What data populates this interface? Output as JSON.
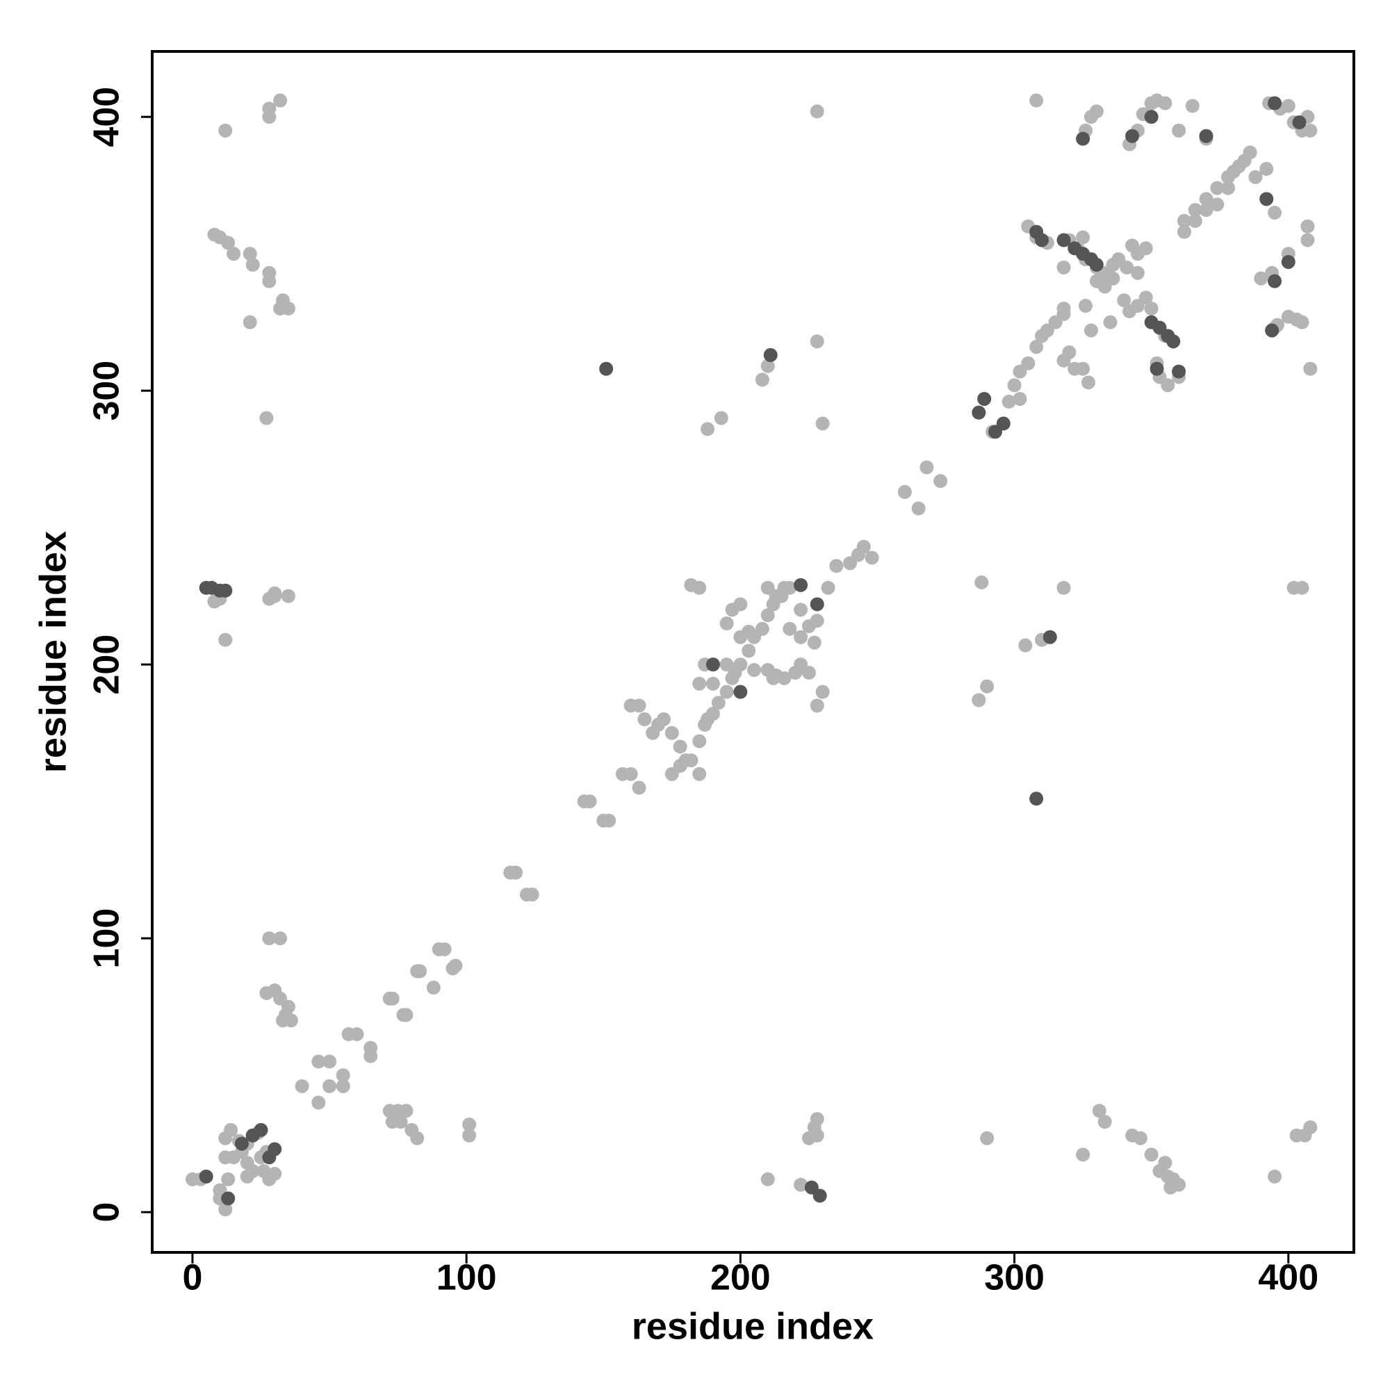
{
  "chart_data": {
    "type": "scatter",
    "x_label": "residue index",
    "y_label": "residue index",
    "xlim": [
      -14.7,
      423.9
    ],
    "ylim": [
      -14.7,
      423.9
    ],
    "xticks": [
      0,
      100,
      200,
      300,
      400
    ],
    "yticks": [
      0,
      100,
      200,
      300,
      400
    ],
    "series": [
      {
        "color": "#b4b4b4",
        "x": [
          0,
          3,
          10,
          12,
          10,
          13,
          12,
          15,
          18,
          20,
          22,
          25,
          26,
          28,
          30,
          12,
          14,
          17,
          20,
          22,
          20,
          27,
          24,
          40,
          46,
          46,
          50,
          55,
          50,
          55,
          57,
          60,
          65,
          65,
          72,
          73,
          77,
          78,
          82,
          88,
          83,
          90,
          96,
          95,
          92,
          116,
          118,
          124,
          122,
          143,
          145,
          150,
          152,
          157,
          160,
          163,
          160,
          163,
          165,
          168,
          170,
          172,
          175,
          178,
          180,
          175,
          178,
          182,
          185,
          185,
          187,
          190,
          192,
          195,
          197,
          200,
          203,
          205,
          208,
          210,
          212,
          215,
          218,
          190,
          195,
          198,
          185,
          188,
          187,
          195,
          197,
          200,
          200,
          203,
          205,
          210,
          213,
          216,
          220,
          222,
          218,
          222,
          225,
          227,
          213,
          216,
          210,
          222,
          228,
          230,
          228,
          182,
          185,
          225,
          212,
          232,
          235,
          240,
          243,
          245,
          248,
          260,
          265,
          268,
          273,
          188,
          193,
          208,
          210,
          228,
          230,
          228,
          12,
          8,
          10,
          28,
          30,
          35,
          30,
          12,
          28,
          28,
          32,
          27,
          21,
          8,
          10,
          13,
          15,
          21,
          22,
          28,
          28,
          32,
          35,
          33,
          28,
          32,
          27,
          30,
          32,
          35,
          34,
          33,
          36,
          72,
          75,
          78,
          76,
          80,
          82,
          73,
          101,
          101,
          210,
          222,
          228,
          227,
          225,
          228,
          287,
          290,
          288,
          304,
          310,
          318,
          290,
          325,
          331,
          333,
          343,
          346,
          350,
          355,
          353,
          356,
          358,
          360,
          357,
          395,
          403,
          408,
          406,
          402,
          405,
          287,
          292,
          298,
          302,
          300,
          302,
          305,
          308,
          310,
          312,
          315,
          318,
          320,
          318,
          322,
          325,
          327,
          328,
          326,
          330,
          333,
          336,
          340,
          342,
          345,
          348,
          350,
          341,
          345,
          348,
          343,
          338,
          345,
          305,
          308,
          312,
          320,
          323,
          326,
          330,
          333,
          353,
          356,
          360,
          352,
          355,
          358,
          362,
          366,
          370,
          374,
          378,
          382,
          386,
          362,
          366,
          370,
          374,
          378,
          380,
          384,
          388,
          392,
          395,
          392,
          390,
          394,
          396,
          400,
          403,
          405,
          395,
          400,
          407,
          407,
          408,
          393,
          397,
          400,
          402,
          405,
          408,
          407,
          326,
          328,
          330,
          335,
          342,
          345,
          347,
          350,
          352,
          355,
          360,
          365,
          370,
          308,
          318,
          318,
          328,
          336,
          325
        ],
        "y": [
          12,
          12,
          5,
          1,
          8,
          12,
          20,
          20,
          22,
          25,
          28,
          20,
          15,
          12,
          14,
          27,
          30,
          26,
          18,
          15,
          13,
          22,
          29,
          46,
          40,
          55,
          55,
          50,
          46,
          46,
          65,
          65,
          57,
          60,
          78,
          78,
          72,
          72,
          88,
          82,
          88,
          96,
          90,
          89,
          96,
          124,
          124,
          116,
          116,
          150,
          150,
          143,
          143,
          160,
          160,
          155,
          185,
          185,
          180,
          175,
          178,
          180,
          175,
          170,
          165,
          160,
          163,
          165,
          160,
          172,
          178,
          182,
          186,
          190,
          195,
          200,
          205,
          210,
          213,
          218,
          222,
          225,
          228,
          193,
          200,
          197,
          193,
          180,
          200,
          215,
          220,
          222,
          210,
          212,
          198,
          198,
          196,
          195,
          197,
          200,
          213,
          210,
          214,
          208,
          225,
          228,
          228,
          220,
          216,
          190,
          185,
          229,
          228,
          197,
          195,
          228,
          236,
          237,
          240,
          243,
          239,
          263,
          257,
          272,
          267,
          286,
          290,
          304,
          309,
          318,
          288,
          402,
          209,
          223,
          224,
          224,
          225,
          225,
          226,
          395,
          400,
          403,
          406,
          290,
          325,
          357,
          356,
          354,
          350,
          350,
          346,
          343,
          340,
          330,
          330,
          333,
          100,
          100,
          80,
          81,
          78,
          75,
          72,
          70,
          70,
          37,
          37,
          37,
          33,
          30,
          27,
          33,
          32,
          28,
          12,
          10,
          34,
          31,
          27,
          28,
          187,
          192,
          230,
          207,
          209,
          228,
          27,
          21,
          37,
          33,
          28,
          27,
          21,
          18,
          15,
          13,
          12,
          10,
          9,
          13,
          28,
          31,
          28,
          228,
          228,
          292,
          285,
          296,
          297,
          302,
          307,
          310,
          316,
          320,
          322,
          325,
          330,
          314,
          311,
          308,
          308,
          303,
          322,
          331,
          340,
          338,
          341,
          333,
          329,
          331,
          334,
          330,
          345,
          350,
          352,
          353,
          348,
          343,
          360,
          356,
          354,
          355,
          352,
          348,
          345,
          343,
          305,
          302,
          305,
          310,
          320,
          318,
          362,
          366,
          370,
          374,
          378,
          382,
          387,
          358,
          362,
          366,
          368,
          374,
          380,
          384,
          378,
          381,
          365,
          370,
          341,
          343,
          324,
          327,
          326,
          325,
          323,
          350,
          355,
          360,
          308,
          405,
          403,
          404,
          398,
          395,
          395,
          400,
          395,
          400,
          402,
          325,
          390,
          395,
          401,
          405,
          406,
          405,
          395,
          404,
          392,
          406,
          328,
          345,
          348,
          346,
          356
        ]
      },
      {
        "color": "#555555",
        "x": [
          5,
          13,
          18,
          22,
          25,
          28,
          30,
          7,
          10,
          5,
          12,
          151,
          190,
          200,
          211,
          222,
          228,
          229,
          226,
          308,
          313,
          289,
          293,
          296,
          287,
          308,
          310,
          318,
          322,
          325,
          328,
          330,
          325,
          343,
          350,
          350,
          353,
          356,
          358,
          352,
          360,
          370,
          394,
          395,
          400,
          395,
          404,
          392
        ],
        "y": [
          13,
          5,
          25,
          28,
          30,
          20,
          23,
          228,
          227,
          228,
          227,
          308,
          200,
          190,
          313,
          229,
          222,
          6,
          9,
          151,
          210,
          297,
          285,
          288,
          292,
          358,
          355,
          355,
          352,
          350,
          348,
          346,
          392,
          393,
          400,
          325,
          323,
          320,
          318,
          308,
          307,
          393,
          322,
          340,
          347,
          405,
          398,
          370
        ]
      }
    ]
  }
}
